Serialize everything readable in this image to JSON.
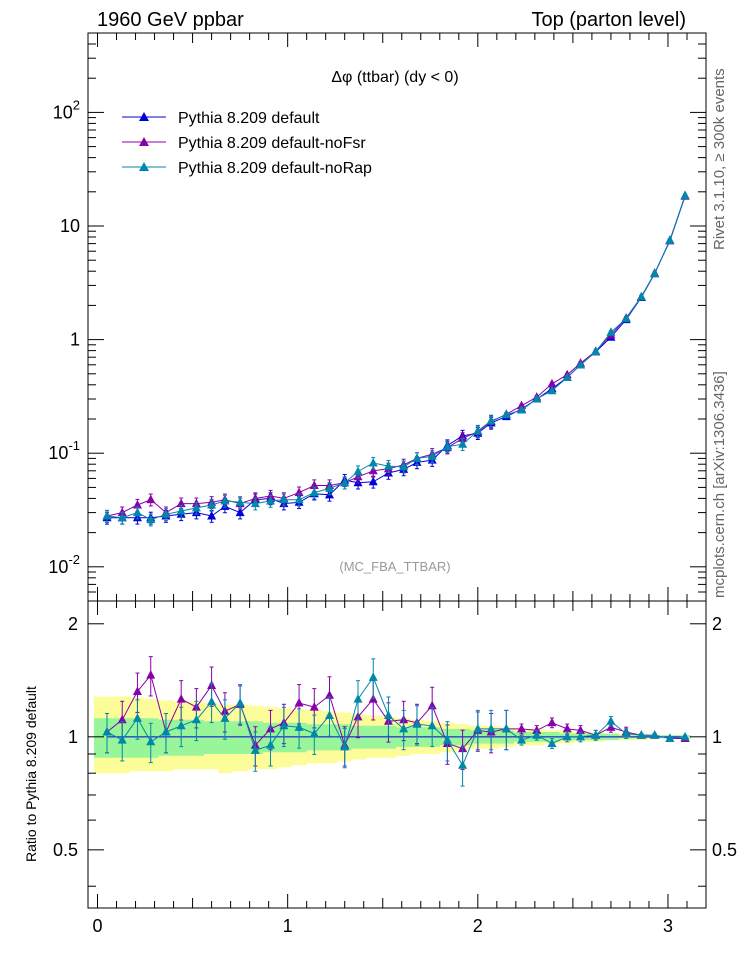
{
  "header": {
    "left": "1960 GeV ppbar",
    "right": "Top (parton level)"
  },
  "side_labels": {
    "rivet": "Rivet 3.1.10, ≥ 300k events",
    "mcplots": "mcplots.cern.ch [arXiv:1306.3436]"
  },
  "colors": {
    "default": "#0000dd",
    "noFsr": "#8800aa",
    "noRap": "#0088aa",
    "band_inner": "#99f599",
    "band_outer": "#fcfc99",
    "watermark": "#999999"
  },
  "chart_data": [
    {
      "type": "line",
      "title": "Δφ (ttbar) (dy < 0)",
      "watermark": "(MC_FBA_TTBAR)",
      "yscale": "log",
      "xlim": [
        -0.05,
        3.2
      ],
      "ylim": [
        0.005,
        500
      ],
      "yticklabels": [
        "10^{-2}",
        "10^{-1}",
        "1",
        "10",
        "10^{2}"
      ],
      "legend_position": "top-left",
      "x": [
        0.05,
        0.13,
        0.21,
        0.28,
        0.36,
        0.44,
        0.52,
        0.6,
        0.67,
        0.75,
        0.83,
        0.91,
        0.98,
        1.06,
        1.14,
        1.22,
        1.3,
        1.37,
        1.45,
        1.53,
        1.61,
        1.68,
        1.76,
        1.84,
        1.92,
        2.0,
        2.07,
        2.15,
        2.23,
        2.31,
        2.39,
        2.47,
        2.54,
        2.62,
        2.7,
        2.78,
        2.86,
        2.93,
        3.01,
        3.09
      ],
      "series": [
        {
          "name": "Pythia 8.209 default",
          "color": "#0000dd",
          "values": [
            0.027,
            0.027,
            0.027,
            0.027,
            0.028,
            0.029,
            0.03,
            0.028,
            0.034,
            0.03,
            0.039,
            0.04,
            0.036,
            0.037,
            0.044,
            0.043,
            0.058,
            0.055,
            0.056,
            0.067,
            0.072,
            0.083,
            0.087,
            0.117,
            0.142,
            0.15,
            0.185,
            0.21,
            0.245,
            0.3,
            0.37,
            0.465,
            0.6,
            0.78,
            1.05,
            1.5,
            2.35,
            3.8,
            7.5,
            18.5
          ]
        },
        {
          "name": "Pythia 8.209 default-noFsr",
          "color": "#8800aa",
          "values": [
            0.028,
            0.03,
            0.035,
            0.039,
            0.03,
            0.036,
            0.036,
            0.037,
            0.039,
            0.036,
            0.04,
            0.042,
            0.04,
            0.045,
            0.052,
            0.052,
            0.055,
            0.062,
            0.07,
            0.073,
            0.079,
            0.09,
            0.098,
            0.112,
            0.135,
            0.155,
            0.19,
            0.22,
            0.262,
            0.312,
            0.408,
            0.49,
            0.62,
            0.79,
            1.1,
            1.55,
            2.38,
            3.85,
            7.4,
            18.3
          ]
        },
        {
          "name": "Pythia 8.209 default-noRap",
          "color": "#0088aa",
          "values": [
            0.028,
            0.027,
            0.03,
            0.026,
            0.029,
            0.031,
            0.033,
            0.035,
            0.038,
            0.037,
            0.036,
            0.038,
            0.039,
            0.039,
            0.045,
            0.049,
            0.055,
            0.069,
            0.082,
            0.077,
            0.076,
            0.09,
            0.094,
            0.114,
            0.12,
            0.157,
            0.193,
            0.218,
            0.24,
            0.301,
            0.355,
            0.464,
            0.598,
            0.785,
            1.16,
            1.53,
            2.38,
            3.82,
            7.45,
            18.5
          ]
        }
      ]
    },
    {
      "type": "line",
      "ylabel": "Ratio to Pythia 8.209 default",
      "xlim": [
        -0.05,
        3.2
      ],
      "ylim": [
        0.35,
        2.3
      ],
      "xticklabels": [
        "0",
        "1",
        "2",
        "3"
      ],
      "yticklabels": [
        "0.5",
        "1",
        "2"
      ],
      "x": [
        0.05,
        0.13,
        0.21,
        0.28,
        0.36,
        0.44,
        0.52,
        0.6,
        0.67,
        0.75,
        0.83,
        0.91,
        0.98,
        1.06,
        1.14,
        1.22,
        1.3,
        1.37,
        1.45,
        1.53,
        1.61,
        1.68,
        1.76,
        1.84,
        1.92,
        2.0,
        2.07,
        2.15,
        2.23,
        2.31,
        2.39,
        2.47,
        2.54,
        2.62,
        2.7,
        2.78,
        2.86,
        2.93,
        3.01,
        3.09
      ],
      "band_inner": [
        [
          0.88,
          1.12
        ],
        [
          0.88,
          1.12
        ],
        [
          0.88,
          1.12
        ],
        [
          0.88,
          1.12
        ],
        [
          0.89,
          1.11
        ],
        [
          0.89,
          1.11
        ],
        [
          0.89,
          1.11
        ],
        [
          0.9,
          1.1
        ],
        [
          0.9,
          1.1
        ],
        [
          0.9,
          1.1
        ],
        [
          0.9,
          1.1
        ],
        [
          0.91,
          1.09
        ],
        [
          0.91,
          1.09
        ],
        [
          0.91,
          1.09
        ],
        [
          0.92,
          1.08
        ],
        [
          0.92,
          1.08
        ],
        [
          0.92,
          1.08
        ],
        [
          0.93,
          1.07
        ],
        [
          0.93,
          1.07
        ],
        [
          0.93,
          1.07
        ],
        [
          0.94,
          1.06
        ],
        [
          0.94,
          1.06
        ],
        [
          0.94,
          1.06
        ],
        [
          0.95,
          1.05
        ],
        [
          0.95,
          1.05
        ],
        [
          0.96,
          1.04
        ],
        [
          0.96,
          1.04
        ],
        [
          0.96,
          1.04
        ],
        [
          0.97,
          1.03
        ],
        [
          0.97,
          1.03
        ],
        [
          0.97,
          1.03
        ],
        [
          0.98,
          1.02
        ],
        [
          0.98,
          1.02
        ],
        [
          0.98,
          1.02
        ],
        [
          0.98,
          1.02
        ],
        [
          0.99,
          1.01
        ],
        [
          0.99,
          1.01
        ],
        [
          0.99,
          1.01
        ],
        [
          0.99,
          1.01
        ],
        [
          0.99,
          1.01
        ]
      ],
      "band_outer": [
        [
          0.8,
          1.28
        ],
        [
          0.8,
          1.28
        ],
        [
          0.81,
          1.27
        ],
        [
          0.81,
          1.26
        ],
        [
          0.81,
          1.25
        ],
        [
          0.82,
          1.24
        ],
        [
          0.82,
          1.24
        ],
        [
          0.82,
          1.23
        ],
        [
          0.8,
          1.22
        ],
        [
          0.81,
          1.22
        ],
        [
          0.82,
          1.21
        ],
        [
          0.82,
          1.2
        ],
        [
          0.83,
          1.19
        ],
        [
          0.84,
          1.18
        ],
        [
          0.85,
          1.18
        ],
        [
          0.85,
          1.17
        ],
        [
          0.86,
          1.16
        ],
        [
          0.87,
          1.15
        ],
        [
          0.88,
          1.14
        ],
        [
          0.88,
          1.13
        ],
        [
          0.89,
          1.12
        ],
        [
          0.9,
          1.11
        ],
        [
          0.9,
          1.1
        ],
        [
          0.91,
          1.09
        ],
        [
          0.92,
          1.08
        ],
        [
          0.93,
          1.07
        ],
        [
          0.93,
          1.07
        ],
        [
          0.94,
          1.06
        ],
        [
          0.95,
          1.05
        ],
        [
          0.95,
          1.05
        ],
        [
          0.96,
          1.04
        ],
        [
          0.96,
          1.04
        ],
        [
          0.97,
          1.03
        ],
        [
          0.97,
          1.03
        ],
        [
          0.98,
          1.02
        ],
        [
          0.98,
          1.02
        ],
        [
          0.98,
          1.02
        ],
        [
          0.99,
          1.01
        ],
        [
          0.99,
          1.01
        ],
        [
          0.99,
          1.01
        ]
      ],
      "series": [
        {
          "name": "Pythia 8.209 default-noFsr",
          "color": "#8800aa",
          "values": [
            1.03,
            1.11,
            1.32,
            1.46,
            1.03,
            1.26,
            1.2,
            1.37,
            1.17,
            1.22,
            0.95,
            1.05,
            1.09,
            1.23,
            1.2,
            1.29,
            0.95,
            1.13,
            1.26,
            1.1,
            1.11,
            1.09,
            1.21,
            0.96,
            0.93,
            1.04,
            1.03,
            1.05,
            1.05,
            1.04,
            1.09,
            1.05,
            1.04,
            1.01,
            1.06,
            1.03,
            1.01,
            1.01,
            0.99,
            0.99
          ]
        },
        {
          "name": "Pythia 8.209 default-noRap",
          "color": "#0088aa",
          "values": [
            1.03,
            0.98,
            1.12,
            0.97,
            1.03,
            1.07,
            1.11,
            1.24,
            1.12,
            1.23,
            0.92,
            0.95,
            1.07,
            1.06,
            1.02,
            1.14,
            0.94,
            1.26,
            1.44,
            1.14,
            1.05,
            1.08,
            1.07,
            0.98,
            0.84,
            1.05,
            1.05,
            1.05,
            0.98,
            1.01,
            0.96,
            1.0,
            1.0,
            1.01,
            1.1,
            1.02,
            1.01,
            1.01,
            0.99,
            1.0
          ]
        }
      ]
    }
  ]
}
